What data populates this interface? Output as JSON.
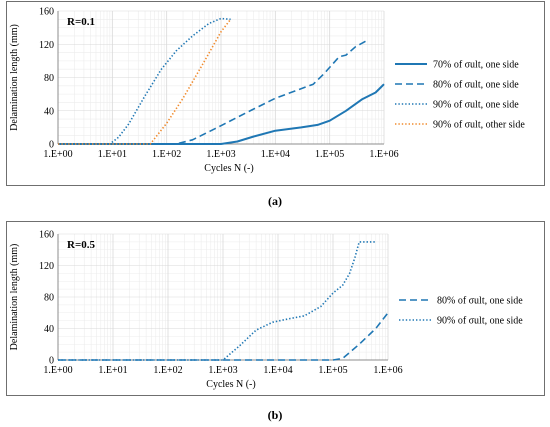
{
  "captions": {
    "a": "(a)",
    "b": "(b)"
  },
  "colors": {
    "series": "#1f77b4",
    "orange": "#f08a2c",
    "grid": "#d9d9d9",
    "axis": "#8c8c8c"
  },
  "chart_data": [
    {
      "type": "line",
      "x_scale": "log",
      "annotation": "R=0.1",
      "xlabel": "Cycles N (-)",
      "ylabel": "Delamination length (mm)",
      "xlim": [
        1,
        1000000
      ],
      "ylim": [
        0,
        160
      ],
      "x_ticks": [
        "1.E+00",
        "1.E+01",
        "1.E+02",
        "1.E+03",
        "1.E+04",
        "1.E+05",
        "1.E+06"
      ],
      "y_ticks": [
        "0",
        "40",
        "80",
        "120",
        "160"
      ],
      "grid": true,
      "legend_position": "right",
      "series": [
        {
          "name": "70% of σult, one side",
          "color": "#1f77b4",
          "dash": "solid",
          "points": [
            [
              1,
              0
            ],
            [
              150,
              0
            ],
            [
              1000,
              0
            ],
            [
              2000,
              3
            ],
            [
              4000,
              9
            ],
            [
              10000,
              16
            ],
            [
              30000,
              20
            ],
            [
              60000,
              23
            ],
            [
              100000,
              28
            ],
            [
              200000,
              40
            ],
            [
              400000,
              54
            ],
            [
              700000,
              62
            ],
            [
              1000000,
              72
            ]
          ]
        },
        {
          "name": "80% of σult, one side",
          "color": "#1f77b4",
          "dash": "dashed",
          "points": [
            [
              1,
              0
            ],
            [
              150,
              0
            ],
            [
              300,
              5
            ],
            [
              1000,
              22
            ],
            [
              3000,
              38
            ],
            [
              10000,
              55
            ],
            [
              50000,
              72
            ],
            [
              80000,
              85
            ],
            [
              150000,
              105
            ],
            [
              200000,
              107
            ],
            [
              300000,
              117
            ],
            [
              500000,
              125
            ]
          ]
        },
        {
          "name": "90% of σult, one side",
          "color": "#1f77b4",
          "dash": "dotted",
          "points": [
            [
              1,
              0
            ],
            [
              9,
              0
            ],
            [
              13,
              8
            ],
            [
              20,
              24
            ],
            [
              40,
              58
            ],
            [
              80,
              90
            ],
            [
              150,
              112
            ],
            [
              300,
              130
            ],
            [
              600,
              145
            ],
            [
              1000,
              151
            ],
            [
              1500,
              150
            ]
          ]
        },
        {
          "name": "90% of σult, other side",
          "color": "#f08a2c",
          "dash": "dotted",
          "points": [
            [
              1,
              0
            ],
            [
              50,
              0
            ],
            [
              100,
              25
            ],
            [
              200,
              55
            ],
            [
              500,
              100
            ],
            [
              1000,
              135
            ],
            [
              1500,
              150
            ]
          ]
        }
      ]
    },
    {
      "type": "line",
      "x_scale": "log",
      "annotation": "R=0.5",
      "xlabel": "Cycles N (-)",
      "ylabel": "Delamination length (mm)",
      "xlim": [
        1,
        1000000
      ],
      "ylim": [
        0,
        160
      ],
      "x_ticks": [
        "1.E+00",
        "1.E+01",
        "1.E+02",
        "1.E+03",
        "1.E+04",
        "1.E+05",
        "1.E+06"
      ],
      "y_ticks": [
        "0",
        "40",
        "80",
        "120",
        "160"
      ],
      "grid": true,
      "legend_position": "right",
      "series": [
        {
          "name": "80% of σult, one side",
          "color": "#1f77b4",
          "dash": "dashed",
          "points": [
            [
              1,
              0
            ],
            [
              100000,
              0
            ],
            [
              150000,
              2
            ],
            [
              300000,
              20
            ],
            [
              600000,
              40
            ],
            [
              1000000,
              60
            ]
          ]
        },
        {
          "name": "90% of σult, one side",
          "color": "#1f77b4",
          "dash": "dotted",
          "points": [
            [
              1,
              0
            ],
            [
              1000,
              0
            ],
            [
              2000,
              18
            ],
            [
              4000,
              38
            ],
            [
              8000,
              48
            ],
            [
              15000,
              52
            ],
            [
              30000,
              56
            ],
            [
              60000,
              68
            ],
            [
              100000,
              85
            ],
            [
              150000,
              95
            ],
            [
              200000,
              110
            ],
            [
              250000,
              130
            ],
            [
              300000,
              150
            ],
            [
              600000,
              150
            ]
          ]
        }
      ]
    }
  ]
}
